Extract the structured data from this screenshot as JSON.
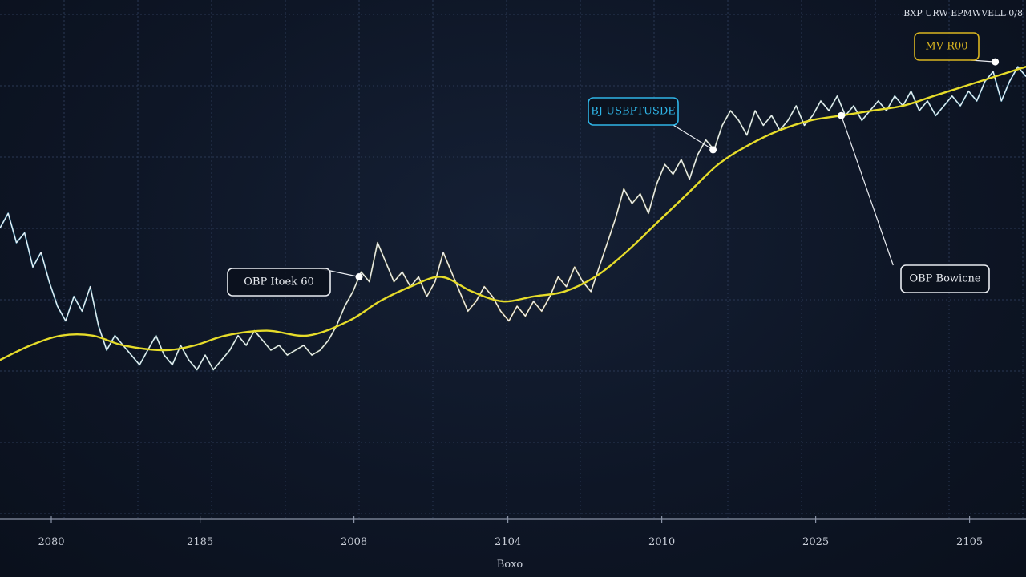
{
  "header": {
    "text": "BXP URW EPMWVELL 0/8"
  },
  "chart_data": {
    "type": "line",
    "title": "",
    "xlabel": "Boxo",
    "ylabel": "",
    "xlim": [
      0,
      100
    ],
    "ylim": [
      0,
      100
    ],
    "x_ticks": [
      {
        "label": "2080",
        "x": 5
      },
      {
        "label": "2185",
        "x": 19.5
      },
      {
        "label": "2008",
        "x": 34.5
      },
      {
        "label": "2104",
        "x": 49.5
      },
      {
        "label": "2010",
        "x": 64.5
      },
      {
        "label": "2025",
        "x": 79.5
      },
      {
        "label": "2105",
        "x": 94.5
      }
    ],
    "grid": true,
    "colors": {
      "price": "#eef1f6",
      "moving_average": "#e6dc2a",
      "accent_blue": "#2fb4e6",
      "accent_gold": "#d9a520"
    },
    "series": [
      {
        "kind": "price",
        "values": [
          [
            0,
            55
          ],
          [
            0.8,
            58
          ],
          [
            1.6,
            52
          ],
          [
            2.4,
            54
          ],
          [
            3.2,
            47
          ],
          [
            4,
            50
          ],
          [
            4.8,
            44
          ],
          [
            5.6,
            39
          ],
          [
            6.4,
            36
          ],
          [
            7.2,
            41
          ],
          [
            8,
            38
          ],
          [
            8.8,
            43
          ],
          [
            9.6,
            35
          ],
          [
            10.4,
            30
          ],
          [
            11.2,
            33
          ],
          [
            12,
            31
          ],
          [
            12.8,
            29
          ],
          [
            13.6,
            27
          ],
          [
            14.4,
            30
          ],
          [
            15.2,
            33
          ],
          [
            16,
            29
          ],
          [
            16.8,
            27
          ],
          [
            17.6,
            31
          ],
          [
            18.4,
            28
          ],
          [
            19.2,
            26
          ],
          [
            20,
            29
          ],
          [
            20.8,
            26
          ],
          [
            21.6,
            28
          ],
          [
            22.4,
            30
          ],
          [
            23.2,
            33
          ],
          [
            24,
            31
          ],
          [
            24.8,
            34
          ],
          [
            25.6,
            32
          ],
          [
            26.4,
            30
          ],
          [
            27.2,
            31
          ],
          [
            28,
            29
          ],
          [
            28.8,
            30
          ],
          [
            29.6,
            31
          ],
          [
            30.4,
            29
          ],
          [
            31.2,
            30
          ],
          [
            32,
            32
          ],
          [
            32.8,
            35
          ],
          [
            33.6,
            39
          ],
          [
            34.4,
            42
          ],
          [
            35.2,
            46
          ],
          [
            36,
            44
          ],
          [
            36.8,
            52
          ],
          [
            37.6,
            48
          ],
          [
            38.4,
            44
          ],
          [
            39.2,
            46
          ],
          [
            40,
            43
          ],
          [
            40.8,
            45
          ],
          [
            41.6,
            41
          ],
          [
            42.4,
            44
          ],
          [
            43.2,
            50
          ],
          [
            44,
            46
          ],
          [
            44.8,
            42
          ],
          [
            45.6,
            38
          ],
          [
            46.4,
            40
          ],
          [
            47.2,
            43
          ],
          [
            48,
            41
          ],
          [
            48.8,
            38
          ],
          [
            49.6,
            36
          ],
          [
            50.4,
            39
          ],
          [
            51.2,
            37
          ],
          [
            52,
            40
          ],
          [
            52.8,
            38
          ],
          [
            53.6,
            41
          ],
          [
            54.4,
            45
          ],
          [
            55.2,
            43
          ],
          [
            56,
            47
          ],
          [
            56.8,
            44
          ],
          [
            57.6,
            42
          ],
          [
            58.4,
            47
          ],
          [
            59.2,
            52
          ],
          [
            60,
            57
          ],
          [
            60.8,
            63
          ],
          [
            61.6,
            60
          ],
          [
            62.4,
            62
          ],
          [
            63.2,
            58
          ],
          [
            64,
            64
          ],
          [
            64.8,
            68
          ],
          [
            65.6,
            66
          ],
          [
            66.4,
            69
          ],
          [
            67.2,
            65
          ],
          [
            68,
            70
          ],
          [
            68.8,
            73
          ],
          [
            69.6,
            71
          ],
          [
            70.4,
            76
          ],
          [
            71.2,
            79
          ],
          [
            72,
            77
          ],
          [
            72.8,
            74
          ],
          [
            73.6,
            79
          ],
          [
            74.4,
            76
          ],
          [
            75.2,
            78
          ],
          [
            76,
            75
          ],
          [
            76.8,
            77
          ],
          [
            77.6,
            80
          ],
          [
            78.4,
            76
          ],
          [
            79.2,
            78
          ],
          [
            80,
            81
          ],
          [
            80.8,
            79
          ],
          [
            81.6,
            82
          ],
          [
            82.4,
            78
          ],
          [
            83.2,
            80
          ],
          [
            84,
            77
          ],
          [
            84.8,
            79
          ],
          [
            85.6,
            81
          ],
          [
            86.4,
            79
          ],
          [
            87.2,
            82
          ],
          [
            88,
            80
          ],
          [
            88.8,
            83
          ],
          [
            89.6,
            79
          ],
          [
            90.4,
            81
          ],
          [
            91.2,
            78
          ],
          [
            92,
            80
          ],
          [
            92.8,
            82
          ],
          [
            93.6,
            80
          ],
          [
            94.4,
            83
          ],
          [
            95.2,
            81
          ],
          [
            96,
            85
          ],
          [
            96.8,
            87
          ],
          [
            97.6,
            81
          ],
          [
            98.4,
            85
          ],
          [
            99.2,
            88
          ],
          [
            100,
            86
          ]
        ]
      },
      {
        "kind": "moving_average",
        "values": [
          [
            0,
            28
          ],
          [
            3,
            31
          ],
          [
            6,
            33
          ],
          [
            9,
            33
          ],
          [
            12,
            31
          ],
          [
            16,
            30
          ],
          [
            19,
            31
          ],
          [
            22,
            33
          ],
          [
            26,
            34
          ],
          [
            30,
            33
          ],
          [
            34,
            36
          ],
          [
            37,
            40
          ],
          [
            40,
            43
          ],
          [
            43,
            45
          ],
          [
            46,
            42
          ],
          [
            49,
            40
          ],
          [
            52,
            41
          ],
          [
            55,
            42
          ],
          [
            58,
            45
          ],
          [
            61,
            50
          ],
          [
            64,
            56
          ],
          [
            67,
            62
          ],
          [
            70,
            68
          ],
          [
            73,
            72
          ],
          [
            76,
            75
          ],
          [
            79,
            77
          ],
          [
            82,
            78
          ],
          [
            85,
            79
          ],
          [
            88,
            80
          ],
          [
            91,
            82
          ],
          [
            94,
            84
          ],
          [
            97,
            86
          ],
          [
            100,
            88
          ]
        ]
      }
    ],
    "annotations": [
      {
        "text": "OBP Itoek 60",
        "color": "#e8ebf0",
        "point": [
          35,
          45
        ]
      },
      {
        "text": "BJ USBPTUSDE",
        "color": "#2fb4e6",
        "point": [
          69.5,
          71
        ]
      },
      {
        "text": "MV R00",
        "color": "#d9b520",
        "point": [
          97,
          89
        ]
      },
      {
        "text": "OBP Bowicne",
        "color": "#e8ebf0",
        "point": [
          82,
          78
        ]
      }
    ]
  }
}
